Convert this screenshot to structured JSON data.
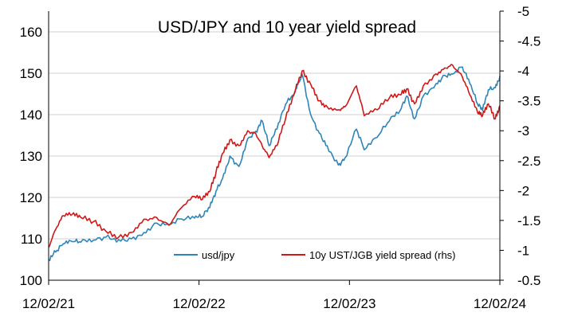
{
  "chart_data": {
    "type": "line",
    "title": "USD/JPY and 10 year yield spread",
    "xlabel": "",
    "ylabel": "",
    "x_ticks": [
      "12/02/21",
      "12/02/22",
      "12/02/23",
      "12/02/24"
    ],
    "ylim_left": [
      100,
      165
    ],
    "y_ticks_left": [
      100,
      110,
      120,
      130,
      140,
      150,
      160
    ],
    "ylim_right": [
      -0.5,
      -5
    ],
    "y_ticks_right": [
      -0.5,
      -1,
      -1.5,
      -2,
      -2.5,
      -3,
      -3.5,
      -4,
      -4.5,
      -5
    ],
    "right_axis_inverted": true,
    "grid": "horizontal",
    "legend_position": "bottom-inside",
    "series": [
      {
        "name": "usd/jpy",
        "axis": "left",
        "color": "#2E86B8",
        "points": [
          [
            "2021-02-12",
            105.0
          ],
          [
            "2021-03-01",
            106.8
          ],
          [
            "2021-03-20",
            108.8
          ],
          [
            "2021-04-10",
            109.3
          ],
          [
            "2021-05-01",
            109.2
          ],
          [
            "2021-06-01",
            109.7
          ],
          [
            "2021-07-01",
            110.4
          ],
          [
            "2021-08-01",
            109.8
          ],
          [
            "2021-09-01",
            110.0
          ],
          [
            "2021-10-01",
            111.5
          ],
          [
            "2021-11-01",
            113.8
          ],
          [
            "2021-12-01",
            113.4
          ],
          [
            "2022-01-01",
            114.8
          ],
          [
            "2022-02-01",
            115.0
          ],
          [
            "2022-02-20",
            115.4
          ],
          [
            "2022-03-10",
            117.5
          ],
          [
            "2022-03-25",
            121.5
          ],
          [
            "2022-04-10",
            124.5
          ],
          [
            "2022-04-28",
            130.0
          ],
          [
            "2022-05-20",
            127.5
          ],
          [
            "2022-06-10",
            134.2
          ],
          [
            "2022-06-30",
            136.0
          ],
          [
            "2022-07-15",
            138.5
          ],
          [
            "2022-08-01",
            132.5
          ],
          [
            "2022-08-20",
            136.5
          ],
          [
            "2022-09-10",
            142.5
          ],
          [
            "2022-09-30",
            144.8
          ],
          [
            "2022-10-20",
            149.8
          ],
          [
            "2022-11-10",
            140.0
          ],
          [
            "2022-12-01",
            135.5
          ],
          [
            "2022-12-20",
            132.5
          ],
          [
            "2023-01-16",
            127.8
          ],
          [
            "2023-02-01",
            129.5
          ],
          [
            "2023-03-01",
            136.5
          ],
          [
            "2023-03-20",
            131.5
          ],
          [
            "2023-04-20",
            134.5
          ],
          [
            "2023-05-20",
            138.5
          ],
          [
            "2023-06-15",
            141.0
          ],
          [
            "2023-07-01",
            144.5
          ],
          [
            "2023-07-20",
            139.0
          ],
          [
            "2023-08-10",
            144.5
          ],
          [
            "2023-09-10",
            147.5
          ],
          [
            "2023-10-01",
            149.5
          ],
          [
            "2023-10-20",
            149.8
          ],
          [
            "2023-11-13",
            151.5
          ],
          [
            "2023-12-01",
            147.5
          ],
          [
            "2023-12-20",
            142.5
          ],
          [
            "2024-01-01",
            141.0
          ],
          [
            "2024-01-15",
            146.0
          ],
          [
            "2024-02-01",
            146.5
          ],
          [
            "2024-02-12",
            149.3
          ]
        ]
      },
      {
        "name": "10y UST/JGB yield spread (rhs)",
        "axis": "right",
        "color": "#D01818",
        "points": [
          [
            "2021-02-12",
            -1.05
          ],
          [
            "2021-03-01",
            -1.35
          ],
          [
            "2021-03-20",
            -1.58
          ],
          [
            "2021-04-10",
            -1.6
          ],
          [
            "2021-05-01",
            -1.55
          ],
          [
            "2021-06-01",
            -1.48
          ],
          [
            "2021-07-01",
            -1.32
          ],
          [
            "2021-08-01",
            -1.22
          ],
          [
            "2021-09-01",
            -1.3
          ],
          [
            "2021-10-01",
            -1.52
          ],
          [
            "2021-11-01",
            -1.55
          ],
          [
            "2021-12-01",
            -1.42
          ],
          [
            "2022-01-01",
            -1.72
          ],
          [
            "2022-02-01",
            -1.9
          ],
          [
            "2022-02-20",
            -1.85
          ],
          [
            "2022-03-10",
            -1.98
          ],
          [
            "2022-03-25",
            -2.3
          ],
          [
            "2022-04-10",
            -2.62
          ],
          [
            "2022-04-28",
            -2.85
          ],
          [
            "2022-05-20",
            -2.75
          ],
          [
            "2022-06-10",
            -3.0
          ],
          [
            "2022-06-30",
            -2.95
          ],
          [
            "2022-07-15",
            -2.75
          ],
          [
            "2022-08-01",
            -2.55
          ],
          [
            "2022-08-20",
            -2.75
          ],
          [
            "2022-09-10",
            -3.2
          ],
          [
            "2022-09-30",
            -3.6
          ],
          [
            "2022-10-20",
            -4.0
          ],
          [
            "2022-11-10",
            -3.78
          ],
          [
            "2022-12-01",
            -3.5
          ],
          [
            "2022-12-20",
            -3.4
          ],
          [
            "2023-01-16",
            -3.35
          ],
          [
            "2023-02-01",
            -3.4
          ],
          [
            "2023-03-01",
            -3.75
          ],
          [
            "2023-03-20",
            -3.25
          ],
          [
            "2023-04-20",
            -3.35
          ],
          [
            "2023-05-20",
            -3.55
          ],
          [
            "2023-06-15",
            -3.6
          ],
          [
            "2023-07-01",
            -3.7
          ],
          [
            "2023-07-20",
            -3.45
          ],
          [
            "2023-08-10",
            -3.75
          ],
          [
            "2023-09-10",
            -3.95
          ],
          [
            "2023-10-01",
            -4.05
          ],
          [
            "2023-10-20",
            -4.1
          ],
          [
            "2023-11-13",
            -3.9
          ],
          [
            "2023-12-01",
            -3.6
          ],
          [
            "2023-12-20",
            -3.3
          ],
          [
            "2024-01-01",
            -3.25
          ],
          [
            "2024-01-15",
            -3.45
          ],
          [
            "2024-02-01",
            -3.2
          ],
          [
            "2024-02-12",
            -3.42
          ]
        ]
      }
    ]
  }
}
